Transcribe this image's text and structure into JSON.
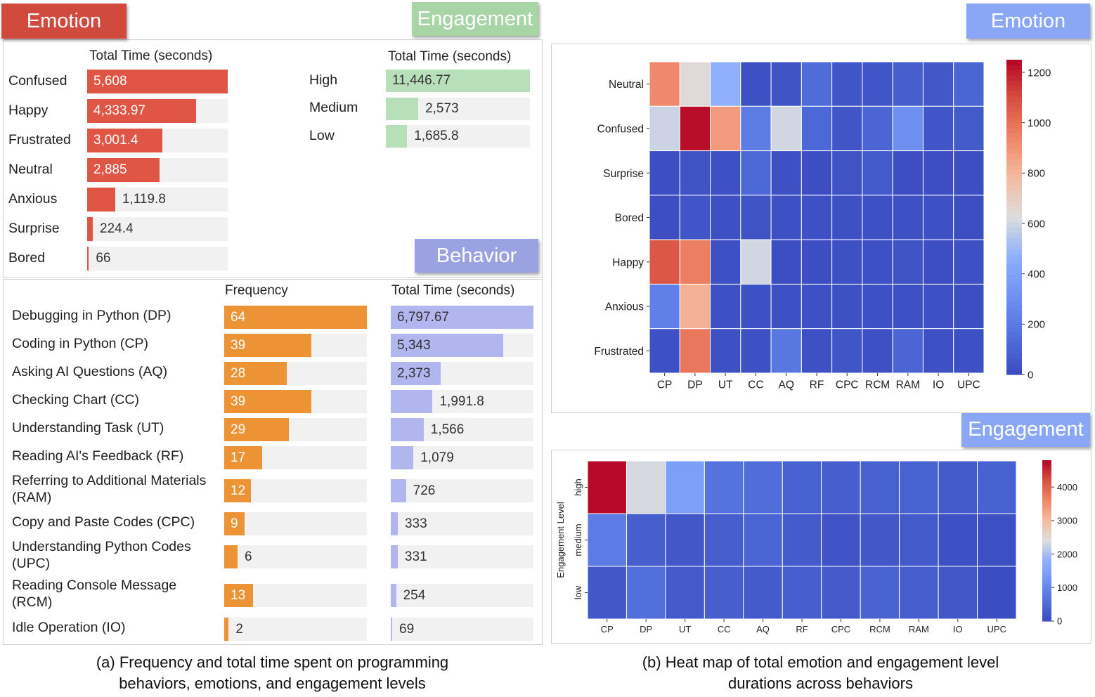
{
  "colors": {
    "emotion_bar": "#e05645",
    "engagement_bar": "#b7dfb8",
    "behavior_freq_bar": "#ec9435",
    "behavior_time_bar": "#b1b6ef",
    "tag_emotion_left": "#d24a3e",
    "tag_engagement": "#a8d5a6",
    "tag_behavior": "#9ba2e2",
    "tag_right": "#8aa7f5"
  },
  "panel_a": {
    "tags": {
      "emotion": "Emotion",
      "engagement": "Engagement",
      "behavior": "Behavior"
    },
    "emotion_header": "Total Time (seconds)",
    "engagement_header": "Total Time (seconds)",
    "behavior_freq_header": "Frequency",
    "behavior_time_header": "Total Time (seconds)",
    "caption_line1": "(a) Frequency and total time spent on programming",
    "caption_line2": "behaviors, emotions, and engagement levels"
  },
  "panel_b": {
    "tags": {
      "emotion": "Emotion",
      "engagement": "Engagement"
    },
    "caption_line1": "(b) Heat map of total emotion and engagement level",
    "caption_line2": "durations across behaviors"
  },
  "chart_data": [
    {
      "type": "bar",
      "orientation": "horizontal",
      "header": "Total Time (seconds)",
      "categories": [
        "Confused",
        "Happy",
        "Frustrated",
        "Neutral",
        "Anxious",
        "Surprise",
        "Bored"
      ],
      "values": [
        5608,
        4333.97,
        3001.4,
        2885,
        1119.8,
        224.4,
        66
      ],
      "labels": [
        "5,608",
        "4,333.97",
        "3,001.4",
        "2,885",
        "1,119.8",
        "224.4",
        "66"
      ],
      "xlim": [
        0,
        5608
      ]
    },
    {
      "type": "bar",
      "orientation": "horizontal",
      "header": "Total Time (seconds)",
      "categories": [
        "High",
        "Medium",
        "Low"
      ],
      "values": [
        11446.77,
        2573,
        1685.8
      ],
      "labels": [
        "11,446.77",
        "2,573",
        "1,685.8"
      ],
      "xlim": [
        0,
        11446.77
      ]
    },
    {
      "type": "bar",
      "orientation": "horizontal",
      "categories": [
        "Debugging in Python (DP)",
        "Coding in Python (CP)",
        "Asking AI Questions (AQ)",
        "Checking Chart (CC)",
        "Understanding Task (UT)",
        "Reading AI's Feedback (RF)",
        "Referring to Additional Materials\n(RAM)",
        "Copy and Paste Codes (CPC)",
        "Understanding Python Codes\n(UPC)",
        "Reading Console Message\n(RCM)",
        "Idle Operation (IO)"
      ],
      "series": [
        {
          "name": "Frequency",
          "values": [
            64,
            39,
            28,
            39,
            29,
            17,
            12,
            9,
            6,
            13,
            2
          ],
          "labels": [
            "64",
            "39",
            "28",
            "39",
            "29",
            "17",
            "12",
            "9",
            "6",
            "13",
            "2"
          ],
          "xlim": [
            0,
            64
          ]
        },
        {
          "name": "Total Time (seconds)",
          "values": [
            6797.67,
            5343,
            2373,
            1991.8,
            1566,
            1079,
            726,
            333,
            331,
            254,
            69
          ],
          "labels": [
            "6,797.67",
            "5,343",
            "2,373",
            "1,991.8",
            "1,566",
            "1,079",
            "726",
            "333",
            "331",
            "254",
            "69"
          ],
          "xlim": [
            0,
            6797.67
          ]
        }
      ]
    },
    {
      "type": "heatmap",
      "x": [
        "CP",
        "DP",
        "UT",
        "CC",
        "AQ",
        "RF",
        "CPC",
        "RCM",
        "RAM",
        "IO",
        "UPC"
      ],
      "y": [
        "Neutral",
        "Confused",
        "Surprise",
        "Bored",
        "Happy",
        "Anxious",
        "Frustrated"
      ],
      "values": [
        [
          930,
          640,
          470,
          20,
          30,
          140,
          40,
          40,
          80,
          50,
          110
        ],
        [
          590,
          1230,
          880,
          210,
          600,
          120,
          40,
          110,
          300,
          40,
          60
        ],
        [
          10,
          30,
          20,
          120,
          20,
          10,
          30,
          60,
          10,
          10,
          10
        ],
        [
          10,
          40,
          20,
          30,
          20,
          20,
          20,
          20,
          20,
          20,
          10
        ],
        [
          1070,
          960,
          20,
          600,
          10,
          10,
          20,
          20,
          30,
          10,
          20
        ],
        [
          230,
          810,
          20,
          20,
          20,
          20,
          20,
          20,
          20,
          20,
          10
        ],
        [
          20,
          980,
          20,
          20,
          190,
          20,
          40,
          20,
          110,
          20,
          20
        ]
      ],
      "colorbar": {
        "min": 0,
        "max": 1250,
        "ticks": [
          0,
          200,
          400,
          600,
          800,
          1000,
          1200
        ]
      }
    },
    {
      "type": "heatmap",
      "x": [
        "CP",
        "DP",
        "UT",
        "CC",
        "AQ",
        "RF",
        "CPC",
        "RCM",
        "RAM",
        "IO",
        "UPC"
      ],
      "y": [
        "high",
        "medium",
        "low"
      ],
      "ylabel": "Engagement Level",
      "values": [
        [
          4750,
          2350,
          1450,
          650,
          550,
          350,
          300,
          350,
          380,
          250,
          350
        ],
        [
          800,
          300,
          200,
          280,
          400,
          250,
          120,
          200,
          230,
          80,
          60
        ],
        [
          200,
          600,
          240,
          300,
          250,
          300,
          240,
          380,
          280,
          180,
          30
        ]
      ],
      "colorbar": {
        "min": 0,
        "max": 4800,
        "ticks": [
          0,
          1000,
          2000,
          3000,
          4000
        ]
      }
    }
  ]
}
